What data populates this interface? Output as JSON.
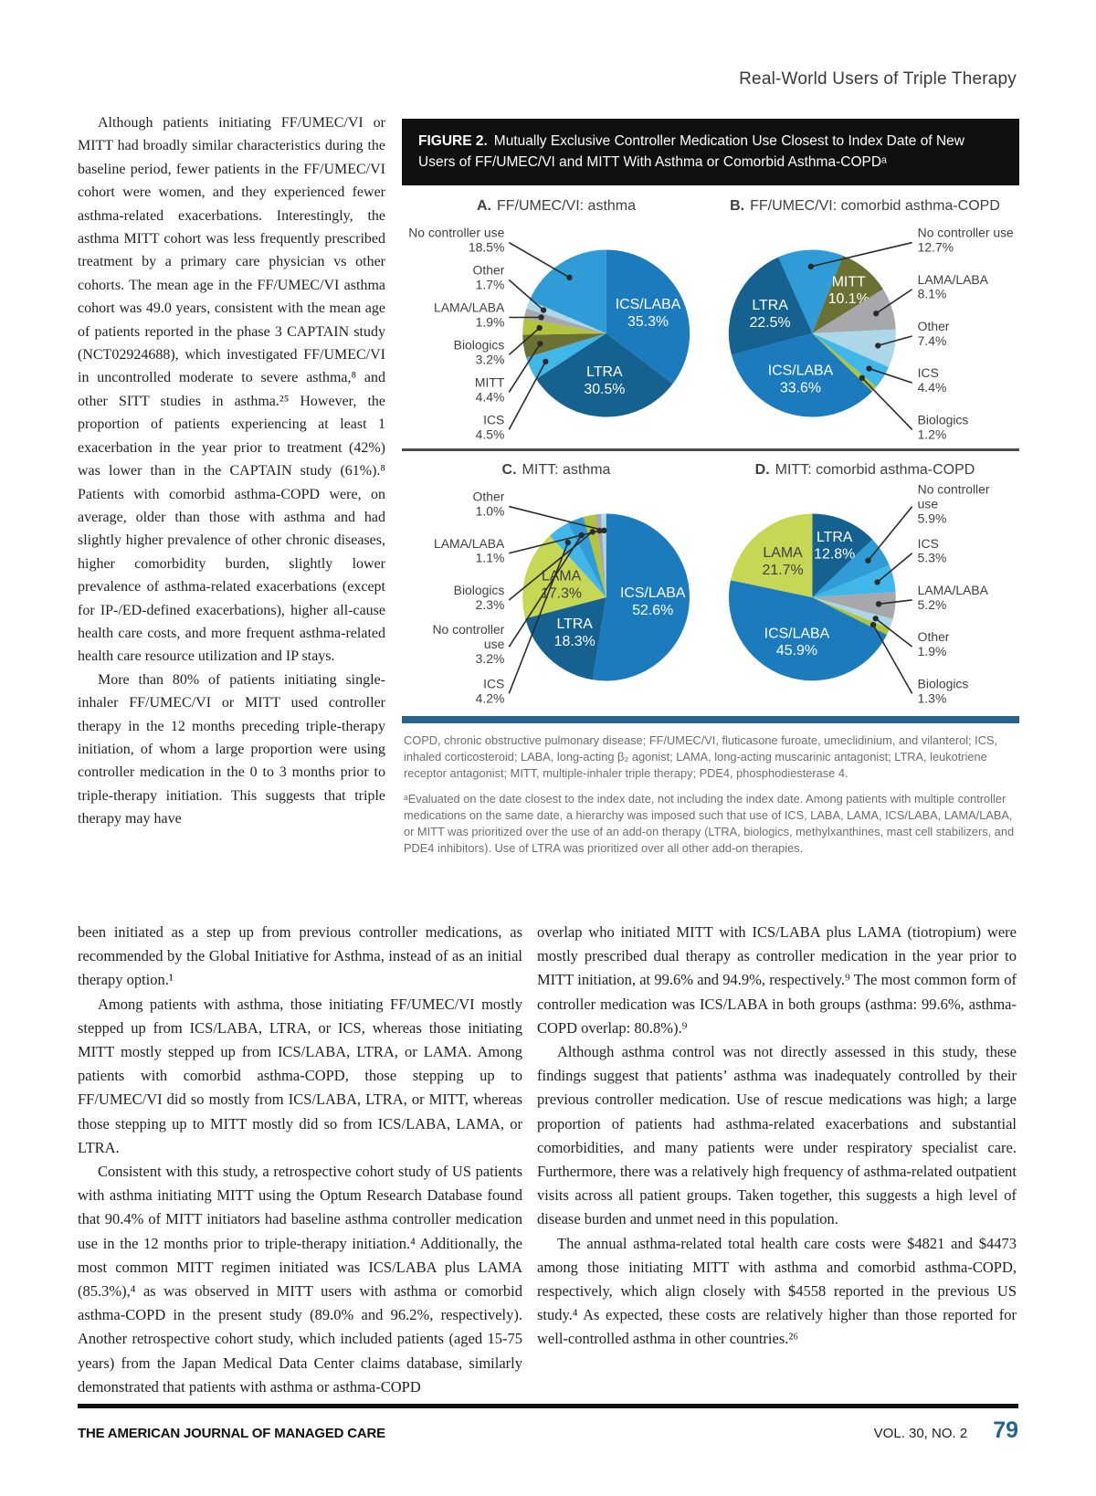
{
  "header": {
    "running_head": "Real-World Users of Triple Therapy"
  },
  "intro_column": {
    "p1": "Although patients initiating FF/UMEC/VI or MITT had broadly similar characteristics during the baseline period, fewer patients in the FF/UMEC/VI cohort were women, and they experienced fewer asthma-related exacerbations. Interestingly, the asthma MITT cohort was less frequently prescribed treatment by a primary care physician vs other cohorts. The mean age in the FF/UMEC/VI asthma cohort was 49.0 years, consistent with the mean age of patients reported in the phase 3 CAPTAIN study (NCT02924688), which investigated FF/UMEC/VI in uncontrolled moderate to severe asthma,⁸ and other SITT studies in asthma.²⁵ However, the proportion of patients experiencing at least 1 exacerbation in the year prior to treatment (42%) was lower than in the CAPTAIN study (61%).⁸ Patients with comorbid asthma-COPD were, on average, older than those with asthma and had slightly higher prevalence of other chronic diseases, higher comorbidity burden, slightly lower prevalence of asthma-related exacerbations (except for IP-/ED-defined exacerbations), higher all-cause health care costs, and more frequent asthma-related health care resource utilization and IP stays.",
    "p2": "More than 80% of patients initiating single-inhaler FF/UMEC/VI or MITT used controller therapy in the 12 months preceding triple-therapy initiation, of whom a large proportion were using controller medication in the 0 to 3 months prior to triple-therapy initiation. This suggests that triple therapy may have"
  },
  "figure": {
    "label": "FIGURE 2.",
    "title": "Mutually Exclusive Controller Medication Use Closest to Index Date of New Users of FF/UMEC/VI and MITT With Asthma or Comorbid Asthma-COPDᵃ",
    "abbreviations": "COPD, chronic obstructive pulmonary disease; FF/UMEC/VI, fluticasone furoate, umeclidinium, and vilanterol; ICS, inhaled corticosteroid; LABA, long-acting β₂ agonist; LAMA, long-acting muscarinic antagonist; LTRA, leukotriene receptor antagonist; MITT, multiple-inhaler triple therapy; PDE4, phosphodiesterase 4.",
    "footnote": "ᵃEvaluated on the date closest to the index date, not including the index date. Among patients with multiple controller medications on the same date, a hierarchy was imposed such that use of ICS, LABA, LAMA, ICS/LABA, LAMA/LABA, or MITT was prioritized over the use of an add-on therapy (LTRA, biologics, methylxanthines, mast cell stabilizers, and PDE4 inhibitors). Use of LTRA was prioritized over all other add-on therapies."
  },
  "chart_data": [
    {
      "type": "pie",
      "panel_label": "A.",
      "title": "FF/UMEC/VI: asthma",
      "callout_side": "left",
      "start_angle": 0,
      "slices": [
        {
          "label": "ICS/LABA",
          "value": 35.3,
          "pct": "35.3%",
          "color": "#1b7bbd",
          "label_pos": "inside",
          "text_color": "#ffffff"
        },
        {
          "label": "LTRA",
          "value": 30.5,
          "pct": "30.5%",
          "color": "#15618f",
          "label_pos": "inside",
          "text_color": "#ffffff"
        },
        {
          "label": "ICS",
          "value": 4.5,
          "pct": "4.5%",
          "color": "#41b6e8",
          "label_pos": "callout"
        },
        {
          "label": "MITT",
          "value": 4.4,
          "pct": "4.4%",
          "color": "#6b7033",
          "label_pos": "callout"
        },
        {
          "label": "Biologics",
          "value": 3.2,
          "pct": "3.2%",
          "color": "#b2c43c",
          "label_pos": "callout"
        },
        {
          "label": "LAMA/LABA",
          "value": 1.9,
          "pct": "1.9%",
          "color": "#a6a8ab",
          "label_pos": "callout"
        },
        {
          "label": "Other",
          "value": 1.7,
          "pct": "1.7%",
          "color": "#abd7e9",
          "label_pos": "callout"
        },
        {
          "label": "No controller use",
          "value": 18.5,
          "pct": "18.5%",
          "color": "#2f9cd8",
          "label_pos": "callout"
        }
      ]
    },
    {
      "type": "pie",
      "panel_label": "B.",
      "title": "FF/UMEC/VI: comorbid asthma-COPD",
      "callout_side": "right",
      "start_angle": -24,
      "slices": [
        {
          "label": "No controller use",
          "value": 12.7,
          "pct": "12.7%",
          "color": "#2f9cd8",
          "label_pos": "callout"
        },
        {
          "label": "MITT",
          "value": 10.1,
          "pct": "10.1%",
          "color": "#6b7033",
          "label_pos": "inside",
          "text_color": "#ffffff"
        },
        {
          "label": "LAMA/LABA",
          "value": 8.1,
          "pct": "8.1%",
          "color": "#a6a8ab",
          "label_pos": "callout"
        },
        {
          "label": "Other",
          "value": 7.4,
          "pct": "7.4%",
          "color": "#abd7e9",
          "label_pos": "callout"
        },
        {
          "label": "ICS",
          "value": 4.4,
          "pct": "4.4%",
          "color": "#41b6e8",
          "label_pos": "callout"
        },
        {
          "label": "Biologics",
          "value": 1.2,
          "pct": "1.2%",
          "color": "#b2c43c",
          "label_pos": "callout"
        },
        {
          "label": "ICS/LABA",
          "value": 33.6,
          "pct": "33.6%",
          "color": "#1b7bbd",
          "label_pos": "inside",
          "text_color": "#ffffff"
        },
        {
          "label": "LTRA",
          "value": 22.5,
          "pct": "22.5%",
          "color": "#15618f",
          "label_pos": "inside",
          "text_color": "#ffffff"
        }
      ]
    },
    {
      "type": "pie",
      "panel_label": "C.",
      "title": "MITT: asthma",
      "callout_side": "left",
      "start_angle": 0,
      "slices": [
        {
          "label": "ICS/LABA",
          "value": 52.6,
          "pct": "52.6%",
          "color": "#1b7bbd",
          "label_pos": "inside",
          "text_color": "#ffffff"
        },
        {
          "label": "LTRA",
          "value": 18.3,
          "pct": "18.3%",
          "color": "#15618f",
          "label_pos": "inside",
          "text_color": "#ffffff"
        },
        {
          "label": "LAMA",
          "value": 17.3,
          "pct": "17.3%",
          "color": "#c5d755",
          "label_pos": "inside",
          "text_color": "#414042"
        },
        {
          "label": "ICS",
          "value": 4.2,
          "pct": "4.2%",
          "color": "#41b6e8",
          "label_pos": "callout"
        },
        {
          "label": "No controller use",
          "value": 3.2,
          "pct": "3.2%",
          "color": "#2f9cd8",
          "label_pos": "callout"
        },
        {
          "label": "Biologics",
          "value": 2.3,
          "pct": "2.3%",
          "color": "#b2c43c",
          "label_pos": "callout"
        },
        {
          "label": "LAMA/LABA",
          "value": 1.1,
          "pct": "1.1%",
          "color": "#a6a8ab",
          "label_pos": "callout"
        },
        {
          "label": "Other",
          "value": 1.0,
          "pct": "1.0%",
          "color": "#abd7e9",
          "label_pos": "callout"
        }
      ]
    },
    {
      "type": "pie",
      "panel_label": "D.",
      "title": "MITT: comorbid asthma-COPD",
      "callout_side": "right",
      "start_angle": 0,
      "slices": [
        {
          "label": "LTRA",
          "value": 12.8,
          "pct": "12.8%",
          "color": "#15618f",
          "label_pos": "inside",
          "text_color": "#ffffff"
        },
        {
          "label": "No controller use",
          "value": 5.9,
          "pct": "5.9%",
          "color": "#2f9cd8",
          "label_pos": "callout"
        },
        {
          "label": "ICS",
          "value": 5.3,
          "pct": "5.3%",
          "color": "#41b6e8",
          "label_pos": "callout"
        },
        {
          "label": "LAMA/LABA",
          "value": 5.2,
          "pct": "5.2%",
          "color": "#a6a8ab",
          "label_pos": "callout"
        },
        {
          "label": "Other",
          "value": 1.9,
          "pct": "1.9%",
          "color": "#abd7e9",
          "label_pos": "callout"
        },
        {
          "label": "Biologics",
          "value": 1.3,
          "pct": "1.3%",
          "color": "#b2c43c",
          "label_pos": "callout"
        },
        {
          "label": "ICS/LABA",
          "value": 45.9,
          "pct": "45.9%",
          "color": "#1b7bbd",
          "label_pos": "inside",
          "text_color": "#ffffff"
        },
        {
          "label": "LAMA",
          "value": 21.7,
          "pct": "21.7%",
          "color": "#c5d755",
          "label_pos": "inside",
          "text_color": "#414042"
        }
      ]
    }
  ],
  "body_bottom_left": {
    "p1": "been initiated as a step up from previous controller medications, as recommended by the Global Initiative for Asthma, instead of as an initial therapy option.¹",
    "p2": "Among patients with asthma, those initiating FF/UMEC/VI mostly stepped up from ICS/LABA, LTRA, or ICS, whereas those initiating MITT mostly stepped up from ICS/LABA, LTRA, or LAMA. Among patients with comorbid asthma-COPD, those stepping up to FF/UMEC/VI did so mostly from ICS/LABA, LTRA, or MITT, whereas those stepping up to MITT mostly did so from ICS/LABA, LAMA, or LTRA.",
    "p3": "Consistent with this study, a retrospective cohort study of US patients with asthma initiating MITT using the Optum Research Database found that 90.4% of MITT initiators had baseline asthma controller medication use in the 12 months prior to triple-therapy initiation.⁴ Additionally, the most common MITT regimen initiated was ICS/LABA plus LAMA (85.3%),⁴ as was observed in MITT users with asthma or comorbid asthma-COPD in the present study (89.0% and 96.2%, respectively). Another retrospective cohort study, which included patients (aged 15-75 years) from the Japan Medical Data Center claims database, similarly demonstrated that patients with asthma or asthma-COPD"
  },
  "body_bottom_right": {
    "p1": "overlap who initiated MITT with ICS/LABA plus LAMA (tiotropium) were mostly prescribed dual therapy as controller medication in the year prior to MITT initiation, at 99.6% and 94.9%, respectively.⁹ The most common form of controller medication was ICS/LABA in both groups (asthma: 99.6%, asthma-COPD overlap: 80.8%).⁹",
    "p2": "Although asthma control was not directly assessed in this study, these findings suggest that patients’ asthma was inadequately controlled by their previous controller medication. Use of rescue medications was high; a large proportion of patients had asthma-related exacerbations and substantial comorbidities, and many patients were under respiratory specialist care. Furthermore, there was a relatively high frequency of asthma-related outpatient visits across all patient groups. Taken together, this suggests a high level of disease burden and unmet need in this population.",
    "p3": "The annual asthma-related total health care costs were $4821 and $4473 among those initiating MITT with asthma and comorbid asthma-COPD, respectively, which align closely with $4558 reported in the previous US study.⁴ As expected, these costs are relatively higher than those reported for well-controlled asthma in other countries.²⁶"
  },
  "footer": {
    "journal": "THE AMERICAN JOURNAL OF MANAGED CARE",
    "volume": "VOL. 30, NO. 2",
    "page_number": "79"
  }
}
